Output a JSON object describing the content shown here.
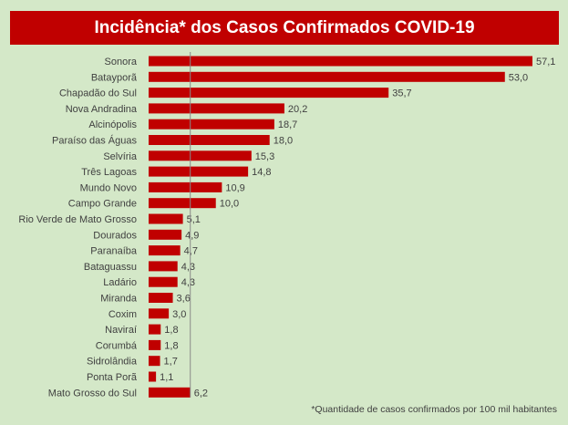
{
  "chart_data": {
    "type": "bar",
    "orientation": "horizontal",
    "title": "Incidência* dos Casos Confirmados COVID-19",
    "footnote": "*Quantidade de casos confirmados por 100 mil habitantes",
    "categories": [
      "Sonora",
      "Batayporã",
      "Chapadão do Sul",
      "Nova Andradina",
      "Alcinópolis",
      "Paraíso das Águas",
      "Selvíria",
      "Três Lagoas",
      "Mundo Novo",
      "Campo Grande",
      "Rio Verde de Mato Grosso",
      "Dourados",
      "Paranaíba",
      "Bataguassu",
      "Ladário",
      "Miranda",
      "Coxim",
      "Naviraí",
      "Corumbá",
      "Sidrolândia",
      "Ponta Porã",
      "Mato Grosso do Sul"
    ],
    "values": [
      57.1,
      53.0,
      35.7,
      20.2,
      18.7,
      18.0,
      15.3,
      14.8,
      10.9,
      10.0,
      5.1,
      4.9,
      4.7,
      4.3,
      4.3,
      3.6,
      3.0,
      1.8,
      1.8,
      1.7,
      1.1,
      6.2
    ],
    "value_labels": [
      "57,1",
      "53,0",
      "35,7",
      "20,2",
      "18,7",
      "18,0",
      "15,3",
      "14,8",
      "10,9",
      "10,0",
      "5,1",
      "4,9",
      "4,7",
      "4,3",
      "4,3",
      "3,6",
      "3,0",
      "1,8",
      "1,8",
      "1,7",
      "1,1",
      "6,2"
    ],
    "reference_line": 6.2,
    "xlim": [
      0,
      57.1
    ],
    "grid": false,
    "colors": {
      "bar": "#c00000",
      "title_bg": "#c00000",
      "title_text": "#ffffff",
      "background": "#d4e8c8",
      "text": "#404040",
      "reference_line": "#8a8a8a"
    }
  }
}
